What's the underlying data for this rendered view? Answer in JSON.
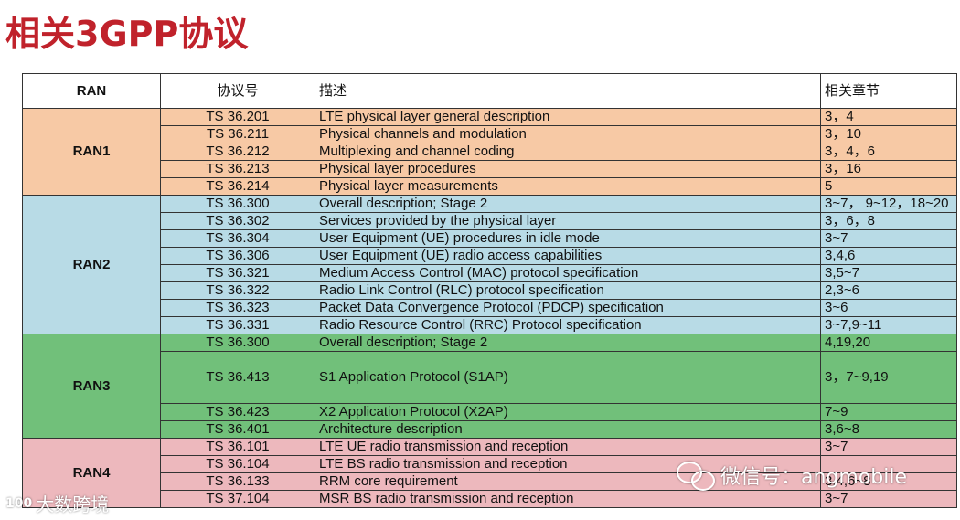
{
  "title": "相关3GPP协议",
  "header": {
    "ran": "RAN",
    "spec": "协议号",
    "desc": "描述",
    "chapters": "相关章节"
  },
  "groups": [
    {
      "name": "RAN1",
      "rows": [
        {
          "spec": "TS 36.201",
          "desc": "LTE physical layer general description",
          "chapters": "3，4"
        },
        {
          "spec": "TS 36.211",
          "desc": "Physical channels and modulation",
          "chapters": "3，10"
        },
        {
          "spec": "TS 36.212",
          "desc": "Multiplexing and channel coding",
          "chapters": "3，4，6"
        },
        {
          "spec": "TS 36.213",
          "desc": "Physical layer procedures",
          "chapters": "3，16"
        },
        {
          "spec": "TS 36.214",
          "desc": "Physical layer measurements",
          "chapters": "5"
        }
      ]
    },
    {
      "name": "RAN2",
      "rows": [
        {
          "spec": "TS 36.300",
          "desc": "Overall description; Stage 2",
          "chapters": "3~7， 9~12，18~20"
        },
        {
          "spec": "TS 36.302",
          "desc": "Services provided by the physical layer",
          "chapters": "3，6，8"
        },
        {
          "spec": "TS 36.304",
          "desc": "User Equipment (UE) procedures in idle mode",
          "chapters": "3~7"
        },
        {
          "spec": "TS 36.306",
          "desc": "User Equipment (UE) radio access capabilities",
          "chapters": "3,4,6"
        },
        {
          "spec": "TS 36.321",
          "desc": "Medium Access Control (MAC) protocol specification",
          "chapters": "3,5~7"
        },
        {
          "spec": "TS 36.322",
          "desc": "Radio Link Control (RLC) protocol specification",
          "chapters": "2,3~6"
        },
        {
          "spec": "TS 36.323",
          "desc": "Packet Data Convergence Protocol (PDCP) specification",
          "chapters": "3~6"
        },
        {
          "spec": "TS 36.331",
          "desc": "Radio Resource Control (RRC) Protocol specification",
          "chapters": "3~7,9~11"
        }
      ]
    },
    {
      "name": "RAN3",
      "rows": [
        {
          "spec": "TS 36.300",
          "desc": "Overall description; Stage 2",
          "chapters": "4,19,20"
        },
        {
          "spec": "TS 36.413",
          "desc": "S1 Application Protocol (S1AP)",
          "chapters": "3，7~9,19"
        },
        {
          "spec": "TS 36.423",
          "desc": "X2 Application Protocol (X2AP)",
          "chapters": "7~9"
        },
        {
          "spec": "TS 36.401",
          "desc": "Architecture description",
          "chapters": "3,6~8"
        }
      ]
    },
    {
      "name": "RAN4",
      "rows": [
        {
          "spec": "TS 36.101",
          "desc": "LTE UE radio transmission and reception",
          "chapters": "3~7"
        },
        {
          "spec": "TS 36.104",
          "desc": "LTE BS radio transmission and reception",
          "chapters": ""
        },
        {
          "spec": "TS 36.133",
          "desc": "RRM core requirement",
          "chapters": "3,4,6~8"
        },
        {
          "spec": "TS 37.104",
          "desc": "MSR BS radio transmission and reception",
          "chapters": "3~7"
        }
      ]
    }
  ],
  "watermarks": {
    "wechat": "微信号：angmobile",
    "site_logo": "100",
    "site": "大数跨境"
  }
}
